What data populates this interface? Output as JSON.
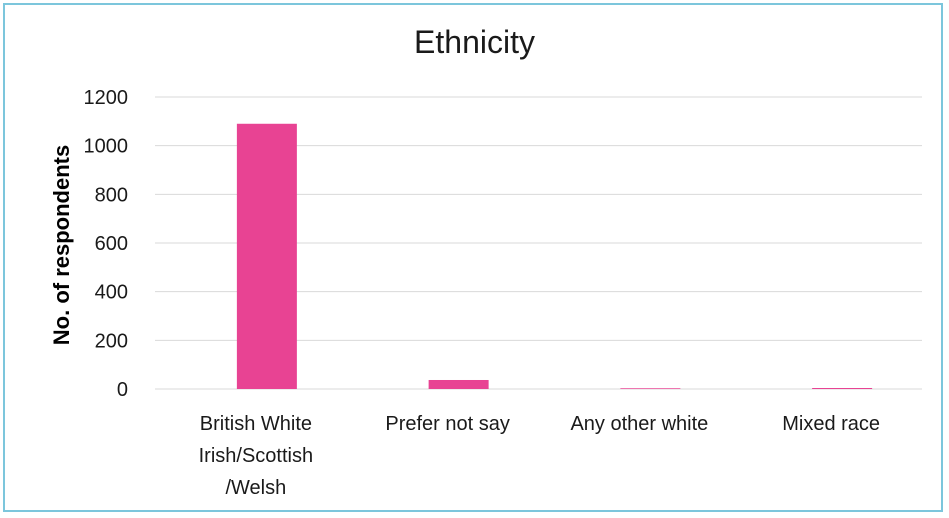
{
  "chart_data": {
    "type": "bar",
    "title": "Ethnicity",
    "xlabel": "",
    "ylabel": "No. of respondents",
    "categories": [
      [
        "British White",
        "Irish/Scottish",
        "/Welsh"
      ],
      [
        "Prefer not say"
      ],
      [
        "Any other white"
      ],
      [
        "Mixed race"
      ]
    ],
    "values": [
      1090,
      37,
      3,
      0
    ],
    "ylim": [
      0,
      1200
    ],
    "yticks": [
      0,
      200,
      400,
      600,
      800,
      1000,
      1200
    ],
    "grid": true,
    "legend": "none",
    "colors": {
      "bar": "#e84393",
      "grid": "#d9d9d9",
      "border": "#7cc6dc"
    }
  }
}
